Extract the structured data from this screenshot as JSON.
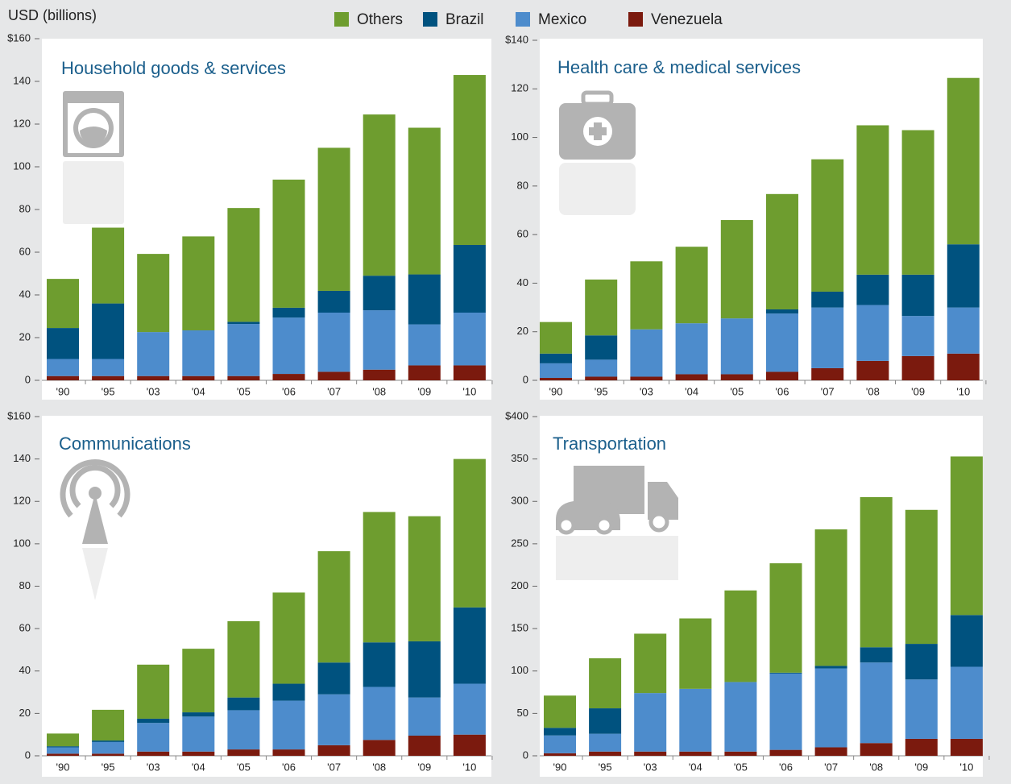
{
  "chart_data": [
    {
      "type": "bar",
      "stacked": true,
      "title": "Household goods & services",
      "ylabel": "USD (billions)",
      "categories": [
        "'90",
        "'95",
        "'03",
        "'04",
        "'05",
        "'06",
        "'07",
        "'08",
        "'09",
        "'10"
      ],
      "series": [
        {
          "name": "Others",
          "color": "#6e9d2f",
          "values": [
            23,
            35.5,
            36.6,
            44,
            53.3,
            60,
            67,
            75.5,
            68.7,
            79.6
          ]
        },
        {
          "name": "Brazil",
          "color": "#00527f",
          "values": [
            14.5,
            26,
            0,
            0,
            1,
            4.6,
            10.2,
            16.2,
            23.4,
            31.7
          ]
        },
        {
          "name": "Mexico",
          "color": "#4d8ccc",
          "values": [
            8,
            8,
            20.6,
            21.4,
            24.4,
            26.4,
            27.7,
            27.8,
            19.2,
            24.7
          ]
        },
        {
          "name": "Venezuela",
          "color": "#7b1a0e",
          "values": [
            2,
            2,
            2,
            2,
            2,
            3,
            4,
            5,
            7,
            7
          ]
        }
      ],
      "ylim": [
        0,
        160
      ],
      "yticks": [
        0,
        20,
        40,
        60,
        80,
        100,
        120,
        140,
        {
          "value": 160,
          "label": "$160"
        }
      ]
    },
    {
      "type": "bar",
      "stacked": true,
      "title": "Health care & medical services",
      "categories": [
        "'90",
        "'95",
        "'03",
        "'04",
        "'05",
        "'06",
        "'07",
        "'08",
        "'09",
        "'10"
      ],
      "series": [
        {
          "name": "Others",
          "color": "#6e9d2f",
          "values": [
            13,
            23,
            28,
            31.5,
            40.5,
            47.5,
            54.5,
            61.5,
            59.5,
            68.5
          ]
        },
        {
          "name": "Brazil",
          "color": "#00527f",
          "values": [
            4,
            10,
            0,
            0,
            0,
            1.7,
            6.5,
            12.5,
            17,
            26
          ]
        },
        {
          "name": "Mexico",
          "color": "#4d8ccc",
          "values": [
            6,
            7,
            19.5,
            21,
            23,
            24,
            25,
            23,
            16.5,
            19
          ]
        },
        {
          "name": "Venezuela",
          "color": "#7b1a0e",
          "values": [
            1,
            1.5,
            1.5,
            2.5,
            2.5,
            3.5,
            5,
            8,
            10,
            11
          ]
        }
      ],
      "ylim": [
        0,
        140
      ],
      "yticks": [
        0,
        20,
        40,
        60,
        80,
        100,
        120,
        {
          "value": 140,
          "label": "$140"
        }
      ]
    },
    {
      "type": "bar",
      "stacked": true,
      "title": "Communications",
      "categories": [
        "'90",
        "'95",
        "'03",
        "'04",
        "'05",
        "'06",
        "'07",
        "'08",
        "'09",
        "'10"
      ],
      "series": [
        {
          "name": "Others",
          "color": "#6e9d2f",
          "values": [
            6,
            14.5,
            25.5,
            30,
            36,
            43,
            52.5,
            61.5,
            59,
            70
          ]
        },
        {
          "name": "Brazil",
          "color": "#00527f",
          "values": [
            0.5,
            0.7,
            2,
            2,
            6,
            8,
            15,
            21,
            26.5,
            36
          ]
        },
        {
          "name": "Mexico",
          "color": "#4d8ccc",
          "values": [
            3,
            5.5,
            13.5,
            16.5,
            18.5,
            23,
            24,
            25,
            18,
            24
          ]
        },
        {
          "name": "Venezuela",
          "color": "#7b1a0e",
          "values": [
            1,
            1,
            2,
            2,
            3,
            3,
            5,
            7.5,
            9.5,
            10
          ]
        }
      ],
      "ylim": [
        0,
        160
      ],
      "yticks": [
        0,
        20,
        40,
        60,
        80,
        100,
        120,
        140,
        {
          "value": 160,
          "label": "$160"
        }
      ]
    },
    {
      "type": "bar",
      "stacked": true,
      "title": "Transportation",
      "categories": [
        "'90",
        "'95",
        "'03",
        "'04",
        "'05",
        "'06",
        "'07",
        "'08",
        "'09",
        "'10"
      ],
      "series": [
        {
          "name": "Others",
          "color": "#6e9d2f",
          "values": [
            38,
            59,
            70,
            83,
            108,
            129,
            161,
            177,
            158,
            187
          ]
        },
        {
          "name": "Brazil",
          "color": "#00527f",
          "values": [
            9,
            30,
            0,
            0,
            0,
            1,
            3,
            18,
            42,
            61
          ]
        },
        {
          "name": "Mexico",
          "color": "#4d8ccc",
          "values": [
            21,
            21,
            69,
            74,
            82,
            90,
            93,
            95,
            70,
            85
          ]
        },
        {
          "name": "Venezuela",
          "color": "#7b1a0e",
          "values": [
            3,
            5,
            5,
            5,
            5,
            7,
            10,
            15,
            20,
            20
          ]
        }
      ],
      "ylim": [
        0,
        400
      ],
      "yticks": [
        0,
        50,
        100,
        150,
        200,
        250,
        300,
        350,
        {
          "value": 400,
          "label": "$400"
        }
      ]
    }
  ]
}
